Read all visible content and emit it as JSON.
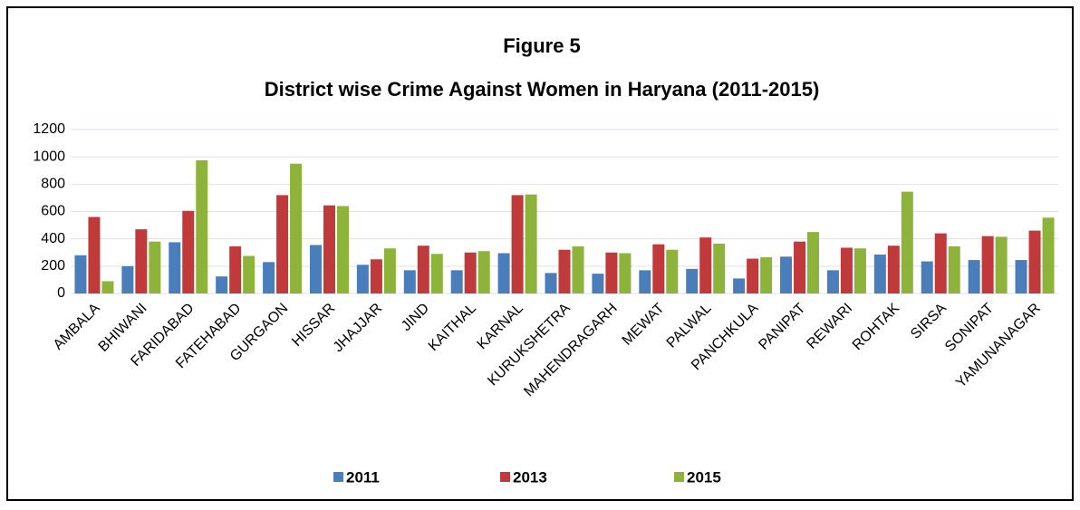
{
  "chart_data": {
    "type": "bar",
    "title": "Figure 5",
    "subtitle": "District wise Crime Against Women in Haryana (2011-2015)",
    "categories": [
      "AMBALA",
      "BHIWANI",
      "FARIDABAD",
      "FATEHABAD",
      "GURGAON",
      "HISSAR",
      "JHAJJAR",
      "JIND",
      "KAITHAL",
      "KARNAL",
      "KURUKSHETRA",
      "MAHENDRAGARH",
      "MEWAT",
      "PALWAL",
      "PANCHKULA",
      "PANIPAT",
      "REWARI",
      "ROHTAK",
      "SIRSA",
      "SONIPAT",
      "YAMUNANAGAR"
    ],
    "series": [
      {
        "name": "2011",
        "color": "#4a7ebb",
        "values": [
          280,
          200,
          375,
          125,
          230,
          355,
          210,
          170,
          170,
          295,
          150,
          145,
          170,
          180,
          110,
          270,
          170,
          285,
          235,
          245,
          245
        ]
      },
      {
        "name": "2013",
        "color": "#c0393b",
        "values": [
          560,
          470,
          605,
          345,
          720,
          645,
          250,
          350,
          300,
          720,
          320,
          300,
          360,
          410,
          255,
          380,
          335,
          350,
          440,
          420,
          460
        ]
      },
      {
        "name": "2015",
        "color": "#8db33a",
        "values": [
          90,
          380,
          975,
          275,
          950,
          640,
          330,
          290,
          310,
          725,
          345,
          295,
          320,
          365,
          265,
          450,
          330,
          745,
          345,
          415,
          555
        ]
      }
    ],
    "ylim": [
      0,
      1200
    ],
    "yticks": [
      0,
      200,
      400,
      600,
      800,
      1000,
      1200
    ],
    "grid": true,
    "legend": "bottom"
  }
}
